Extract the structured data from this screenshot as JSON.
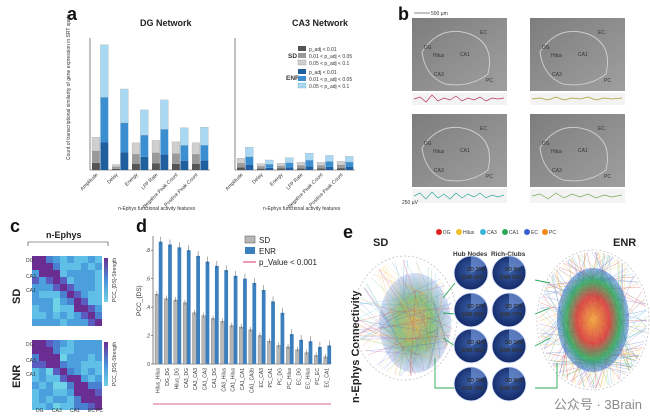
{
  "panel_labels": {
    "a": "a",
    "b": "b",
    "c": "c",
    "d": "d",
    "e": "e"
  },
  "panel_a": {
    "ylabel": "Count of transcriptional similarity of gene expression in SRT spots",
    "xlabel": "n-Ephys functional activity features",
    "feature_labels": [
      "Amplitude",
      "Delay",
      "Energy",
      "LFP Rate",
      "Negative Peak Count",
      "Positive Peak Count"
    ],
    "legend": {
      "sd_label": "SD",
      "enr_label": "ENR",
      "thresholds": [
        "p_adj < 0.01",
        "0.01 < p_adj < 0.05",
        "0.05 < p_adj < 0.1"
      ]
    }
  },
  "panel_b": {
    "scale_label": "500 µm",
    "regions": [
      "DG",
      "Hilus",
      "CA3",
      "CA1",
      "EC",
      "PC"
    ],
    "trace_label": "250 µV"
  },
  "panel_c": {
    "title": "n-Ephys",
    "row_sd": "SD",
    "row_enr": "ENR",
    "colorbar_label": "PCC_{DS}-Strength",
    "axis_labels": [
      "DG",
      "Hilus",
      "CA3",
      "CA1",
      "EC",
      "PC"
    ]
  },
  "panel_d": {
    "ylabel": "PCC_{DS}",
    "legend": [
      "SD",
      "ENR"
    ],
    "pvalue_label": "p_Value < 0.001"
  },
  "panel_e": {
    "title": "n-Ephys Connectivity",
    "sd_label": "SD",
    "enr_label": "ENR",
    "region_legend": [
      "DG",
      "Hilus",
      "CA3",
      "CA1",
      "EC",
      "PC"
    ],
    "hub_nodes_label": "Hub Nodes",
    "rich_clubs_label": "Rich-Clubs",
    "circles": [
      {
        "hub": "SD 35%",
        "hub2": "ENR 90%",
        "rich": "SD 9%",
        "rich2": "ENR 91%"
      },
      {
        "hub": "SD 57%",
        "hub2": "ENR 83%",
        "rich": "SD 22%",
        "rich2": "ENR 77%"
      },
      {
        "hub": "SD 41%",
        "hub2": "ENR 59%",
        "rich": "SD 34%",
        "rich2": "ENR 66%"
      },
      {
        "hub": "SD 76%",
        "hub2": "ENR 24%",
        "rich": "SD 96%",
        "rich2": "ENR 4%"
      }
    ]
  },
  "watermark": "公众号 · 3Brain",
  "colors": {
    "sd_dark": "#555555",
    "sd_mid": "#9a9a9a",
    "sd_light": "#cfcfcf",
    "enr_dark": "#1f5f9e",
    "enr_mid": "#3b8fd1",
    "enr_light": "#a9d8f2",
    "pink": "#d6336c"
  },
  "chart_data": [
    {
      "type": "bar",
      "title": "DG Network",
      "xlabel": "n-Ephys functional activity features",
      "ylabel": "Count of transcriptional similarity of gene expression in SRT spots",
      "categories": [
        "Amplitude",
        "Delay",
        "Energy",
        "LFP Rate",
        "Negative Peak Count",
        "Positive Peak Count"
      ],
      "ylim": [
        0,
        2900
      ],
      "series": [
        {
          "name": "SD",
          "values": [
            720,
            120,
            600,
            650,
            620,
            600
          ]
        },
        {
          "name": "ENR",
          "values": [
            2750,
            1780,
            1320,
            1540,
            930,
            940
          ]
        }
      ]
    },
    {
      "type": "bar",
      "title": "CA3 Network",
      "xlabel": "n-Ephys functional activity features",
      "ylabel": "Count of transcriptional similarity of gene expression in SRT spots",
      "categories": [
        "Amplitude",
        "Delay",
        "Energy",
        "LFP Rate",
        "Negative Peak Count",
        "Positive Peak Count"
      ],
      "ylim": [
        0,
        2900
      ],
      "series": [
        {
          "name": "SD",
          "values": [
            260,
            140,
            150,
            170,
            170,
            190
          ]
        },
        {
          "name": "ENR",
          "values": [
            500,
            220,
            270,
            370,
            320,
            300
          ]
        }
      ]
    },
    {
      "type": "bar",
      "title": "",
      "xlabel": "",
      "ylabel": "PCC_{DS}",
      "ylim": [
        0,
        0.9
      ],
      "categories": [
        "Hilus_Hilus",
        "DG_DG",
        "Hilus_DG",
        "CA3_DG",
        "CA3_CA3",
        "CA1_CA3",
        "CA1_DG",
        "CA3_Hilus",
        "CA1_Hilus",
        "CA1_CA1",
        "CA1_CA3b",
        "EC_CA3",
        "PC_CA1",
        "PC_DG",
        "PC_Hilus",
        "EC_DG",
        "EC_Hilus",
        "PC_EC",
        "EC_CA1"
      ],
      "series": [
        {
          "name": "SD",
          "values": [
            0.49,
            0.46,
            0.45,
            0.43,
            0.36,
            0.34,
            0.32,
            0.3,
            0.27,
            0.26,
            0.24,
            0.2,
            0.16,
            0.13,
            0.12,
            0.1,
            0.08,
            0.06,
            0.05
          ]
        },
        {
          "name": "ENR",
          "values": [
            0.86,
            0.84,
            0.82,
            0.8,
            0.76,
            0.72,
            0.69,
            0.66,
            0.62,
            0.6,
            0.57,
            0.52,
            0.44,
            0.36,
            0.21,
            0.17,
            0.16,
            0.12,
            0.13
          ]
        }
      ]
    }
  ]
}
